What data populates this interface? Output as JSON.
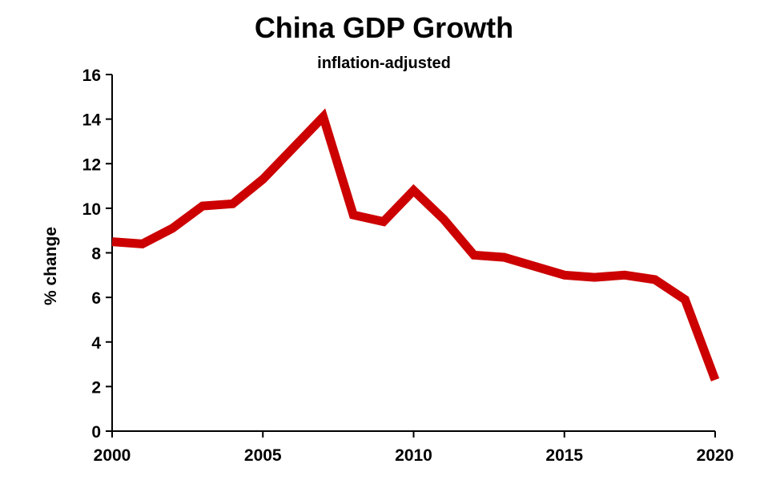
{
  "chart_data": {
    "type": "line",
    "title": "China GDP Growth",
    "subtitle": "inflation-adjusted",
    "xlabel": "",
    "ylabel": "% change",
    "xlim": [
      2000,
      2020
    ],
    "ylim": [
      0,
      16
    ],
    "xticks": [
      "2000",
      "2005",
      "2010",
      "2015",
      "2020"
    ],
    "yticks": [
      "0",
      "2",
      "4",
      "6",
      "8",
      "10",
      "12",
      "14",
      "16"
    ],
    "grid": false,
    "legend": "none",
    "x": [
      2000,
      2001,
      2002,
      2003,
      2004,
      2005,
      2006,
      2007,
      2008,
      2009,
      2010,
      2011,
      2012,
      2013,
      2014,
      2015,
      2016,
      2017,
      2018,
      2019,
      2020
    ],
    "series": [
      {
        "color": "#cc0000",
        "values": [
          8.5,
          8.4,
          9.1,
          10.1,
          10.2,
          11.3,
          12.7,
          14.1,
          9.7,
          9.4,
          10.8,
          9.5,
          7.9,
          7.8,
          7.4,
          7.0,
          6.9,
          7.0,
          6.8,
          5.9,
          2.3
        ]
      }
    ]
  }
}
